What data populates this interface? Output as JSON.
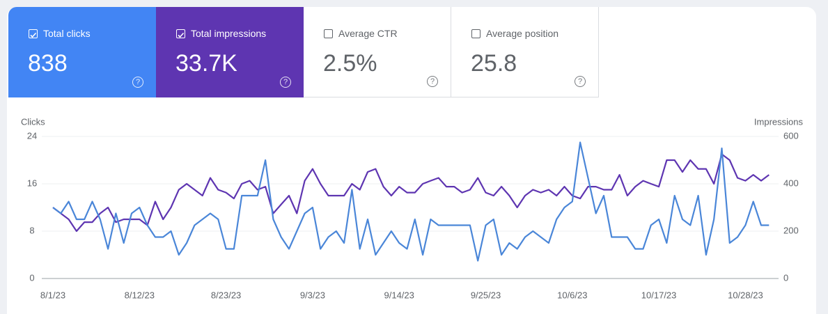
{
  "cards": [
    {
      "label": "Total clicks",
      "value": "838",
      "checked": true,
      "color": "#4285f4"
    },
    {
      "label": "Total impressions",
      "value": "33.7K",
      "checked": true,
      "color": "#5e35b1"
    },
    {
      "label": "Average CTR",
      "value": "2.5%",
      "checked": false
    },
    {
      "label": "Average position",
      "value": "25.8",
      "checked": false
    }
  ],
  "chart_data": {
    "type": "line",
    "categories": [
      "8/1/23",
      null,
      null,
      null,
      null,
      null,
      null,
      null,
      null,
      null,
      null,
      "8/12/23",
      null,
      null,
      null,
      null,
      null,
      null,
      null,
      null,
      null,
      null,
      "8/23/23",
      null,
      null,
      null,
      null,
      null,
      null,
      null,
      null,
      null,
      null,
      "9/3/23",
      null,
      null,
      null,
      null,
      null,
      null,
      null,
      null,
      null,
      null,
      "9/14/23",
      null,
      null,
      null,
      null,
      null,
      null,
      null,
      null,
      null,
      null,
      "9/25/23",
      null,
      null,
      null,
      null,
      null,
      null,
      null,
      null,
      null,
      null,
      "10/6/23",
      null,
      null,
      null,
      null,
      null,
      null,
      null,
      null,
      null,
      null,
      "10/17/23",
      null,
      null,
      null,
      null,
      null,
      null,
      null,
      null,
      null,
      null,
      "10/28/23",
      null,
      null,
      null
    ],
    "series": [
      {
        "name": "Impressions",
        "color": "#5e35b1",
        "axis": "y2",
        "values": [
          300,
          275,
          250,
          200,
          238,
          238,
          275,
          300,
          238,
          250,
          250,
          250,
          225,
          325,
          250,
          300,
          375,
          400,
          375,
          350,
          425,
          375,
          363,
          338,
          400,
          413,
          375,
          388,
          275,
          313,
          350,
          275,
          413,
          463,
          400,
          350,
          350,
          350,
          400,
          375,
          450,
          463,
          388,
          350,
          388,
          363,
          363,
          400,
          413,
          425,
          388,
          388,
          363,
          375,
          425,
          363,
          350,
          388,
          350,
          300,
          350,
          375,
          363,
          375,
          350,
          388,
          350,
          338,
          388,
          388,
          375,
          375,
          438,
          350,
          388,
          413,
          400,
          388,
          500,
          500,
          450,
          500,
          463,
          463,
          400,
          525,
          500,
          425,
          413,
          438,
          413,
          438
        ]
      },
      {
        "name": "Clicks",
        "color": "#4a86d8",
        "values": [
          12,
          11,
          13,
          10,
          10,
          13,
          10,
          5,
          11,
          6,
          11,
          12,
          9,
          7,
          7,
          8,
          4,
          6,
          9,
          10,
          11,
          10,
          5,
          5,
          14,
          14,
          14,
          20,
          10,
          7,
          5,
          8,
          11,
          12,
          5,
          7,
          8,
          6,
          15,
          5,
          10,
          4,
          6,
          8,
          6,
          5,
          10,
          4,
          10,
          9,
          9,
          9,
          9,
          9,
          3,
          9,
          10,
          4,
          6,
          5,
          7,
          8,
          7,
          6,
          10,
          12,
          13,
          23,
          17,
          11,
          14,
          7,
          7,
          7,
          5,
          5,
          9,
          10,
          6,
          14,
          10,
          9,
          14,
          4,
          10,
          22,
          6,
          7,
          9,
          13,
          9,
          9
        ]
      }
    ],
    "ylim": [
      0,
      24
    ],
    "yticks": [
      0,
      8,
      16,
      24
    ],
    "y2lim": [
      0,
      600
    ],
    "y2ticks": [
      0,
      200,
      400,
      600
    ],
    "grid": true
  }
}
